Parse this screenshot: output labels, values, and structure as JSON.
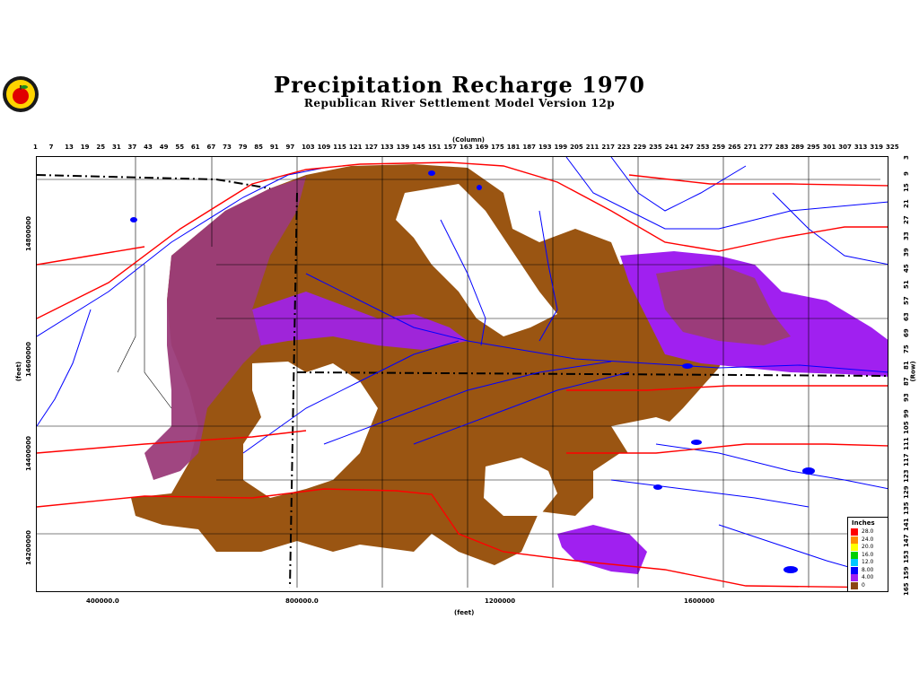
{
  "title": "Precipitation Recharge 1970",
  "subtitle": "Republican River Settlement Model Version 12p",
  "axes": {
    "top_label": "(Column)",
    "bottom_label": "(feet)",
    "left_label": "(feet)",
    "right_label": "(Row)",
    "y_ticks": [
      "14800000",
      "14600000",
      "14400000",
      "14200000"
    ],
    "x_ticks": [
      "400000.0",
      "800000.0",
      "1200000",
      "1600000"
    ],
    "column_ticks": [
      "1",
      "7",
      "13",
      "19",
      "25",
      "31",
      "37",
      "43",
      "49",
      "55",
      "61",
      "67",
      "73",
      "79",
      "85",
      "91",
      "97",
      "103",
      "109",
      "115",
      "121",
      "127",
      "133",
      "139",
      "145",
      "151",
      "157",
      "163",
      "169",
      "175",
      "181",
      "187",
      "193",
      "199",
      "205",
      "211",
      "217",
      "223",
      "229",
      "235",
      "241",
      "247",
      "253",
      "259",
      "265",
      "271",
      "277",
      "283",
      "289",
      "295",
      "301",
      "307",
      "313",
      "319",
      "325"
    ],
    "row_ticks": [
      "3",
      "9",
      "15",
      "21",
      "27",
      "33",
      "39",
      "45",
      "51",
      "57",
      "63",
      "69",
      "75",
      "81",
      "87",
      "93",
      "99",
      "105",
      "111",
      "117",
      "123",
      "129",
      "135",
      "141",
      "147",
      "153",
      "159",
      "165"
    ]
  },
  "legend": {
    "title": "Inches",
    "items": [
      {
        "label": "28.0",
        "color": "#ff0000"
      },
      {
        "label": "24.0",
        "color": "#ff8c00"
      },
      {
        "label": "20.0",
        "color": "#ffff00"
      },
      {
        "label": "16.0",
        "color": "#00d000"
      },
      {
        "label": "12.0",
        "color": "#00c8ff"
      },
      {
        "label": "8.00",
        "color": "#0000ff"
      },
      {
        "label": "4.00",
        "color": "#a020f0"
      },
      {
        "label": "0",
        "color": "#8b4513"
      }
    ]
  },
  "colors": {
    "recharge_high": "#a020f0",
    "recharge_mid": "#9b3c7a",
    "recharge_low": "#9a5512",
    "rivers": "#0000ff",
    "roads": "#ff0000",
    "boundaries": "#000000"
  },
  "logo_icon": "apple-seal-icon"
}
